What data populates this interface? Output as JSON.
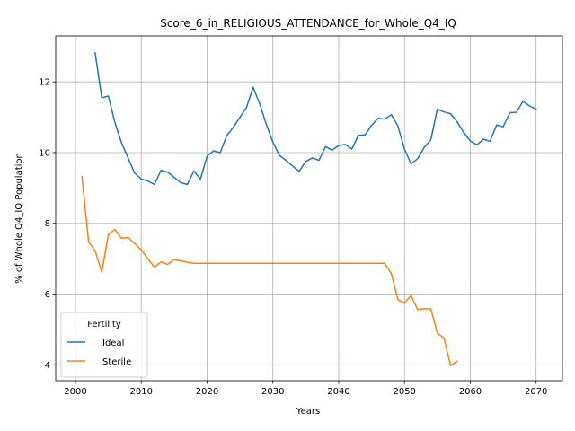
{
  "chart_data": {
    "type": "line",
    "title": "Score_6_in_RELIGIOUS_ATTENDANCE_for_Whole_Q4_IQ",
    "xlabel": "Years",
    "ylabel": "% of Whole Q4_IQ Population",
    "xlim": [
      1997,
      2074
    ],
    "ylim": [
      3.55,
      13.3
    ],
    "xticks": [
      2000,
      2010,
      2020,
      2030,
      2040,
      2050,
      2060,
      2070
    ],
    "yticks": [
      4,
      6,
      8,
      10,
      12
    ],
    "grid": true,
    "legend": {
      "title": "Fertility",
      "placement": "lower-left"
    },
    "series": [
      {
        "name": "Ideal",
        "color": "#1f77b4",
        "x": [
          2003,
          2004,
          2005,
          2006,
          2007,
          2008,
          2009,
          2010,
          2011,
          2012,
          2013,
          2014,
          2015,
          2016,
          2017,
          2018,
          2019,
          2020,
          2021,
          2022,
          2023,
          2024,
          2025,
          2026,
          2027,
          2028,
          2029,
          2030,
          2031,
          2032,
          2033,
          2034,
          2035,
          2036,
          2037,
          2038,
          2039,
          2040,
          2041,
          2042,
          2043,
          2044,
          2045,
          2046,
          2047,
          2048,
          2049,
          2050,
          2051,
          2052,
          2053,
          2054,
          2055,
          2056,
          2057,
          2058,
          2059,
          2060,
          2061,
          2062,
          2063,
          2064,
          2065,
          2066,
          2067,
          2068,
          2069,
          2070
        ],
        "values": [
          12.82,
          11.55,
          11.6,
          10.85,
          10.28,
          9.85,
          9.42,
          9.25,
          9.2,
          9.1,
          9.5,
          9.45,
          9.3,
          9.15,
          9.1,
          9.48,
          9.25,
          9.9,
          10.05,
          10.0,
          10.48,
          10.72,
          11.0,
          11.28,
          11.85,
          11.38,
          10.8,
          10.3,
          9.92,
          9.78,
          9.62,
          9.47,
          9.75,
          9.85,
          9.78,
          10.17,
          10.07,
          10.2,
          10.23,
          10.1,
          10.49,
          10.5,
          10.77,
          10.97,
          10.95,
          11.07,
          10.75,
          10.1,
          9.68,
          9.83,
          10.15,
          10.36,
          11.23,
          11.15,
          11.1,
          10.87,
          10.57,
          10.33,
          10.22,
          10.38,
          10.32,
          10.78,
          10.73,
          11.13,
          11.14,
          11.45,
          11.32,
          11.23
        ]
      },
      {
        "name": "Sterile",
        "color": "#ff7f0e",
        "x": [
          2001,
          2002,
          2003,
          2004,
          2005,
          2006,
          2007,
          2008,
          2009,
          2010,
          2011,
          2012,
          2013,
          2014,
          2015,
          2016,
          2017,
          2018,
          2019,
          2020,
          2021,
          2022,
          2023,
          2024,
          2025,
          2026,
          2027,
          2028,
          2029,
          2030,
          2031,
          2032,
          2033,
          2034,
          2035,
          2036,
          2037,
          2038,
          2039,
          2040,
          2041,
          2042,
          2043,
          2044,
          2045,
          2046,
          2047,
          2048,
          2049,
          2050,
          2051,
          2052,
          2053,
          2054,
          2055,
          2056,
          2057,
          2058
        ],
        "values": [
          9.32,
          7.48,
          7.22,
          6.62,
          7.68,
          7.83,
          7.58,
          7.6,
          7.43,
          7.25,
          7.0,
          6.76,
          6.91,
          6.84,
          6.97,
          6.94,
          6.9,
          6.87,
          6.87,
          6.87,
          6.87,
          6.87,
          6.87,
          6.87,
          6.87,
          6.87,
          6.87,
          6.87,
          6.87,
          6.87,
          6.87,
          6.87,
          6.87,
          6.87,
          6.87,
          6.87,
          6.87,
          6.87,
          6.87,
          6.87,
          6.87,
          6.87,
          6.87,
          6.87,
          6.87,
          6.87,
          6.87,
          6.58,
          5.84,
          5.75,
          5.96,
          5.56,
          5.59,
          5.58,
          4.9,
          4.75,
          3.98,
          4.1
        ]
      }
    ]
  }
}
